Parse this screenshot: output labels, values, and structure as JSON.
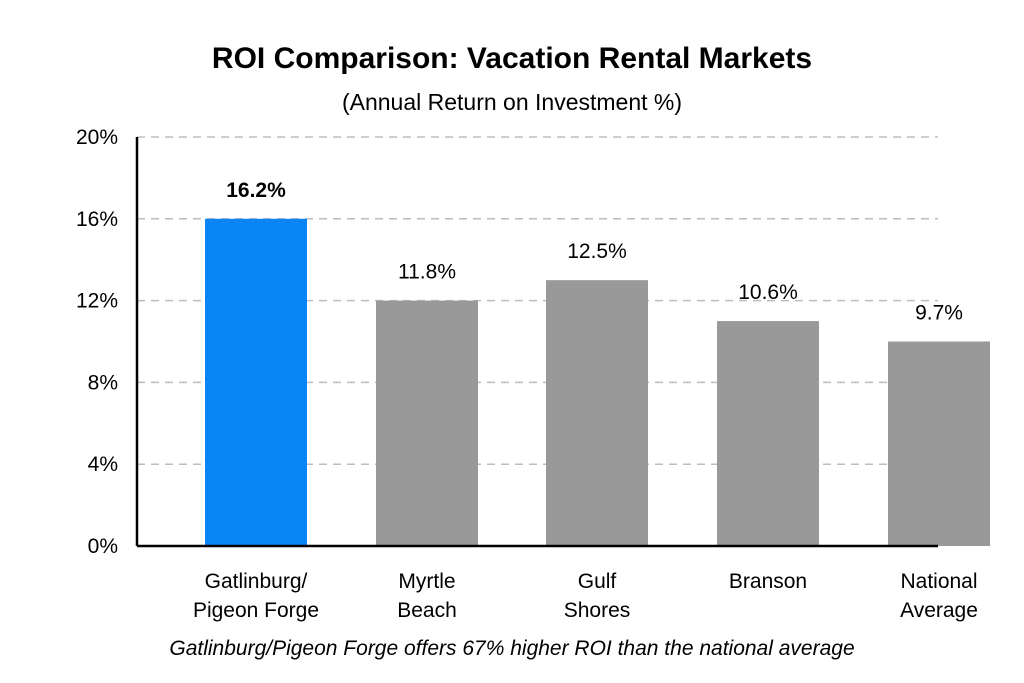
{
  "chart_data": {
    "type": "bar",
    "title": "ROI Comparison: Vacation Rental Markets",
    "subtitle": "(Annual Return on Investment %)",
    "categories": [
      [
        "Gatlinburg/",
        "Pigeon Forge"
      ],
      [
        "Myrtle",
        "Beach"
      ],
      [
        "Gulf",
        "Shores"
      ],
      [
        "Branson"
      ],
      [
        "National",
        "Average"
      ]
    ],
    "values": [
      16,
      12,
      13,
      11,
      10
    ],
    "data_labels": [
      "16.2%",
      "11.8%",
      "12.5%",
      "10.6%",
      "9.7%"
    ],
    "highlight_index": 0,
    "colors": {
      "highlight": "#0a85f5",
      "default": "#999999"
    },
    "ylim": [
      0,
      20
    ],
    "yticks": [
      0,
      4,
      8,
      12,
      16,
      20
    ],
    "ytick_labels": [
      "0%",
      "4%",
      "8%",
      "12%",
      "16%",
      "20%"
    ],
    "grid": true,
    "xlabel": "",
    "ylabel": "",
    "footnote": "Gatlinburg/Pigeon Forge offers 67% higher ROI than the national average"
  }
}
